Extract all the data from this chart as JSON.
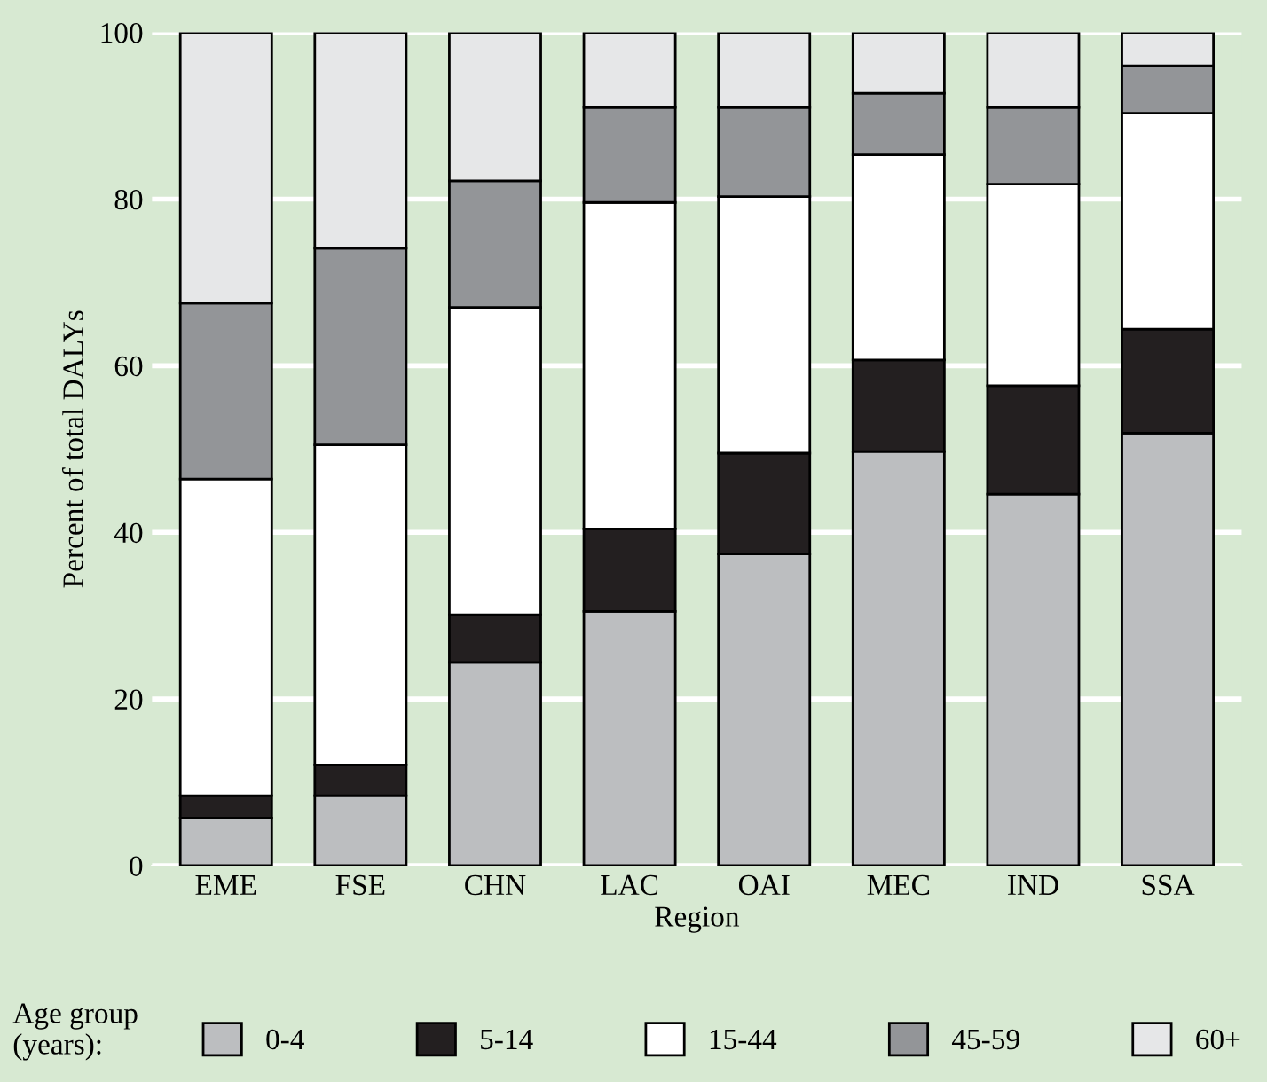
{
  "chart_data": {
    "type": "bar",
    "stacked": true,
    "xlabel": "Region",
    "ylabel": "Percent of total DALYs",
    "legend_title": "Age group\n(years):",
    "legend": "bottom",
    "grid": "y",
    "categories": [
      "EME",
      "FSE",
      "CHN",
      "LAC",
      "OAI",
      "MEC",
      "IND",
      "SSA"
    ],
    "ylim": [
      0,
      100
    ],
    "yticks": [
      0,
      20,
      40,
      60,
      80,
      100
    ],
    "series": [
      {
        "name": "0-4",
        "color": "#bcbec0",
        "values": [
          5.7,
          8.4,
          24.4,
          30.5,
          37.4,
          49.7,
          44.6,
          51.9
        ]
      },
      {
        "name": "5-14",
        "color": "#231f20",
        "values": [
          2.7,
          3.7,
          5.7,
          9.9,
          12.1,
          11.0,
          13.0,
          12.5
        ]
      },
      {
        "name": "15-44",
        "color": "#ffffff",
        "values": [
          38.0,
          38.4,
          36.9,
          39.2,
          30.8,
          24.6,
          24.2,
          25.9
        ]
      },
      {
        "name": "45-59",
        "color": "#939598",
        "values": [
          21.1,
          23.6,
          15.2,
          11.4,
          10.7,
          7.4,
          9.2,
          5.7
        ]
      },
      {
        "name": "60+",
        "color": "#e6e7e8",
        "values": [
          32.5,
          25.9,
          17.8,
          9.0,
          9.0,
          7.3,
          9.0,
          4.0
        ]
      }
    ]
  }
}
